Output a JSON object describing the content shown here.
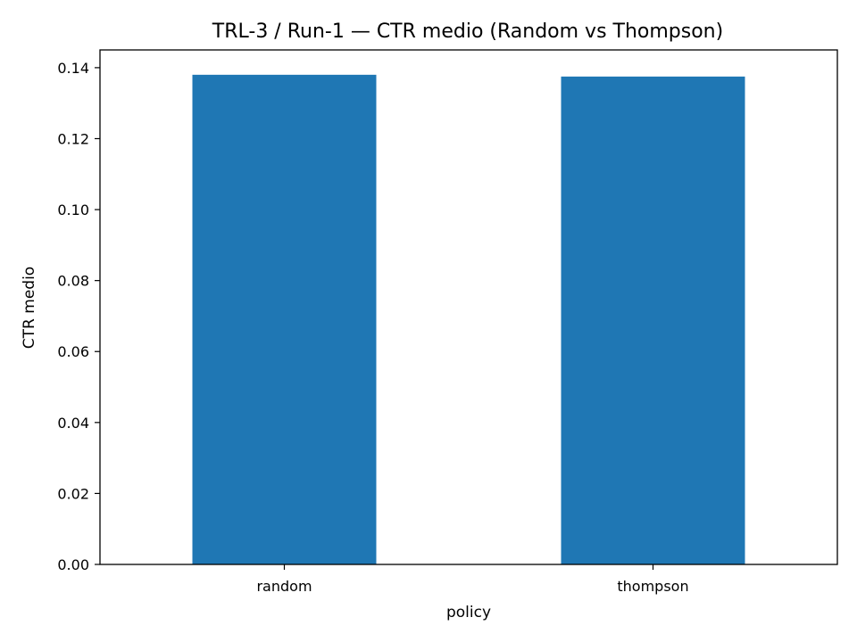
{
  "chart_data": {
    "type": "bar",
    "title": "TRL-3 / Run-1 — CTR medio (Random vs Thompson)",
    "xlabel": "policy",
    "ylabel": "CTR medio",
    "categories": [
      "random",
      "thompson"
    ],
    "values": [
      0.138,
      0.1375
    ],
    "ylim": [
      0,
      0.145
    ],
    "yticks": [
      "0.00",
      "0.02",
      "0.04",
      "0.06",
      "0.08",
      "0.10",
      "0.12",
      "0.14"
    ],
    "bar_color": "#1f77b4",
    "grid": false,
    "legend": "none"
  }
}
